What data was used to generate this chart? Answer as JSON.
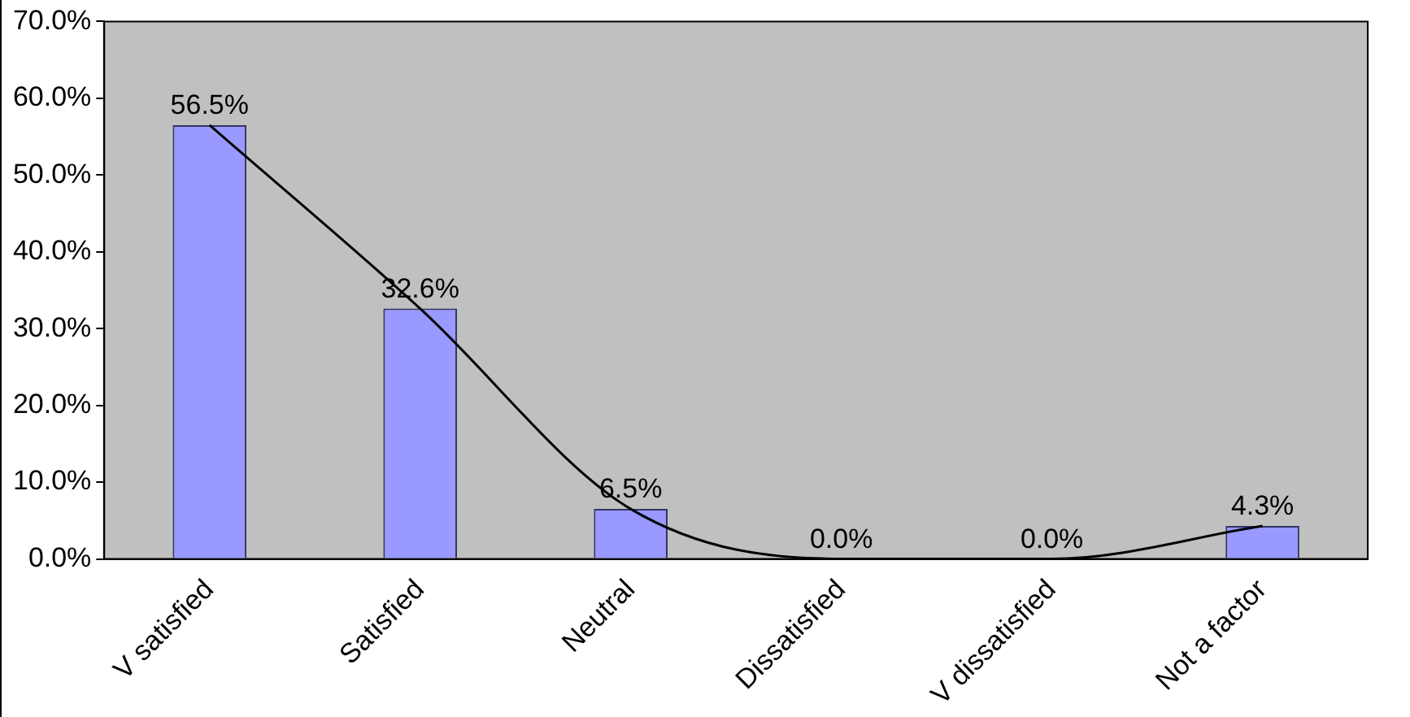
{
  "chart_data": {
    "type": "bar",
    "categories": [
      "V satisfied",
      "Satisfied",
      "Neutral",
      "Dissatisfied",
      "V dissatisfied",
      "Not a factor"
    ],
    "series": [
      {
        "color": "#9999ff",
        "values": [
          56.5,
          32.6,
          6.5,
          0,
          0,
          4.3
        ],
        "value_labels": [
          "56.5%",
          "32.6%",
          "6.5%",
          "0.0%",
          "0.0%",
          "4.3%"
        ]
      },
      {
        "type": "line",
        "color": "#000000",
        "marker": "none",
        "line_style": "solid",
        "x": [
          "V satisfied",
          "Satisfied",
          "Neutral",
          "Dissatisfied",
          "V dissatisfied",
          "Not a factor"
        ],
        "values": [
          56.5,
          32.6,
          6.5,
          0,
          0,
          4.3
        ]
      }
    ],
    "ylim": [
      0,
      70
    ],
    "yticks": [
      {
        "value": 0,
        "label": "0.0%"
      },
      {
        "value": 10,
        "label": "10.0%"
      },
      {
        "value": 20,
        "label": "20.0%"
      },
      {
        "value": 30,
        "label": "30.0%"
      },
      {
        "value": 40,
        "label": "40.0%"
      },
      {
        "value": 50,
        "label": "50.0%"
      },
      {
        "value": 60,
        "label": "60.0%"
      },
      {
        "value": 70,
        "label": "70.0%"
      }
    ],
    "grid": false,
    "legend": false
  }
}
